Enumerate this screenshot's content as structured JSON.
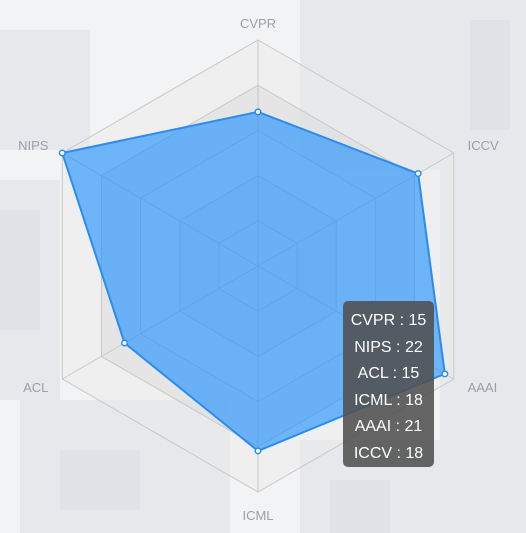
{
  "chart_data": {
    "type": "radar",
    "axes": [
      "CVPR",
      "ICCV",
      "AAAI",
      "ICML",
      "ACL",
      "NIPS"
    ],
    "max": 22,
    "rings": 5,
    "series": [
      {
        "values": [
          15,
          18,
          21,
          18,
          15,
          22
        ]
      }
    ],
    "tooltip": [
      {
        "label": "CVPR",
        "value": 15
      },
      {
        "label": "NIPS",
        "value": 22
      },
      {
        "label": "ACL",
        "value": 15
      },
      {
        "label": "ICML",
        "value": 18
      },
      {
        "label": "AAAI",
        "value": 21
      },
      {
        "label": "ICCV",
        "value": 18
      }
    ],
    "colors": {
      "series_fill": "#1e90ff",
      "series_line": "#2a8cf0",
      "grid": "#c8c8c8",
      "tooltip_bg": "#505050"
    }
  }
}
